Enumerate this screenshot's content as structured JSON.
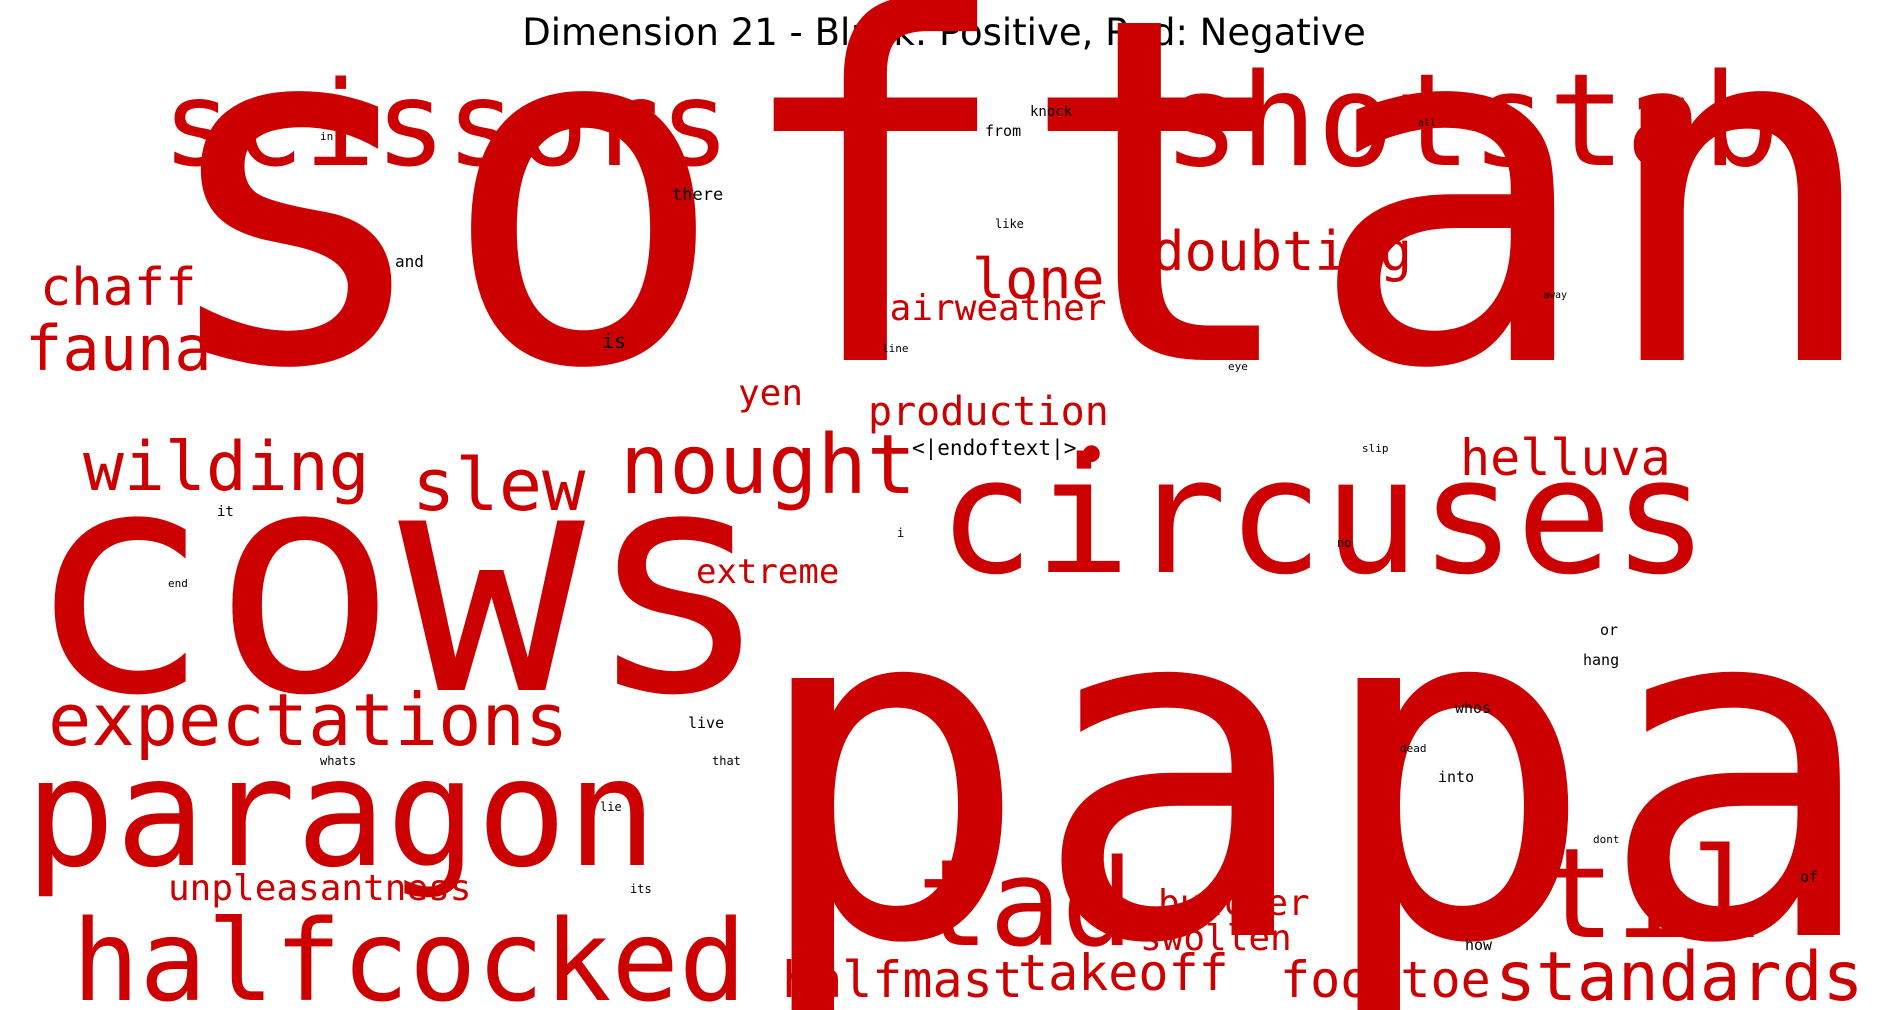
{
  "chart_data": {
    "type": "wordcloud",
    "title": "Dimension 21 - Black: Positive, Red: Negative",
    "colors": {
      "positive": "#000000",
      "negative": "#cc0000"
    },
    "words": [
      {
        "text": "softan",
        "sign": "negative",
        "weight": 100
      },
      {
        "text": "papa",
        "sign": "negative",
        "weight": 95
      },
      {
        "text": "cows",
        "sign": "negative",
        "weight": 72
      },
      {
        "text": "paragon",
        "sign": "negative",
        "weight": 42
      },
      {
        "text": "circuses",
        "sign": "negative",
        "weight": 38
      },
      {
        "text": "shotstab",
        "sign": "negative",
        "weight": 32
      },
      {
        "text": "scissors",
        "sign": "negative",
        "weight": 31
      },
      {
        "text": "halfcocked",
        "sign": "negative",
        "weight": 30
      },
      {
        "text": "tad",
        "sign": "negative",
        "weight": 30
      },
      {
        "text": "til",
        "sign": "negative",
        "weight": 30
      },
      {
        "text": "nought",
        "sign": "negative",
        "weight": 21
      },
      {
        "text": "expectations",
        "sign": "negative",
        "weight": 19
      },
      {
        "text": "slew",
        "sign": "negative",
        "weight": 19
      },
      {
        "text": "wilding",
        "sign": "negative",
        "weight": 18
      },
      {
        "text": "standards",
        "sign": "negative",
        "weight": 18
      },
      {
        "text": "fauna",
        "sign": "negative",
        "weight": 17
      },
      {
        "text": "lone",
        "sign": "negative",
        "weight": 15
      },
      {
        "text": "doubting",
        "sign": "negative",
        "weight": 14
      },
      {
        "text": "helluva",
        "sign": "negative",
        "weight": 14
      },
      {
        "text": "foottoe",
        "sign": "negative",
        "weight": 14
      },
      {
        "text": "halfmast",
        "sign": "negative",
        "weight": 14
      },
      {
        "text": "takeoff",
        "sign": "negative",
        "weight": 14
      },
      {
        "text": "chaff",
        "sign": "negative",
        "weight": 14
      },
      {
        "text": "production",
        "sign": "negative",
        "weight": 12
      },
      {
        "text": "fairweather",
        "sign": "negative",
        "weight": 10
      },
      {
        "text": "butcher",
        "sign": "negative",
        "weight": 10
      },
      {
        "text": "yen",
        "sign": "negative",
        "weight": 10
      },
      {
        "text": "unpleasantness",
        "sign": "negative",
        "weight": 10
      },
      {
        "text": "swollen",
        "sign": "negative",
        "weight": 9
      },
      {
        "text": "extreme",
        "sign": "negative",
        "weight": 9
      },
      {
        "text": "●",
        "sign": "negative",
        "weight": 9
      },
      {
        "text": "<|endoftext|>",
        "sign": "positive",
        "weight": 6
      },
      {
        "text": "is",
        "sign": "positive",
        "weight": 6
      },
      {
        "text": "there",
        "sign": "positive",
        "weight": 5
      },
      {
        "text": "and",
        "sign": "positive",
        "weight": 5
      },
      {
        "text": "live",
        "sign": "positive",
        "weight": 4.5
      },
      {
        "text": "whos",
        "sign": "positive",
        "weight": 4.5
      },
      {
        "text": "into",
        "sign": "positive",
        "weight": 4.5
      },
      {
        "text": "hang",
        "sign": "positive",
        "weight": 4.5
      },
      {
        "text": "or",
        "sign": "positive",
        "weight": 4.5
      },
      {
        "text": "of",
        "sign": "positive",
        "weight": 4.5
      },
      {
        "text": "how",
        "sign": "positive",
        "weight": 4.5
      },
      {
        "text": "from",
        "sign": "positive",
        "weight": 4.5
      },
      {
        "text": "knock",
        "sign": "positive",
        "weight": 4
      },
      {
        "text": "it",
        "sign": "positive",
        "weight": 4
      },
      {
        "text": "like",
        "sign": "positive",
        "weight": 3.5
      },
      {
        "text": "whats",
        "sign": "positive",
        "weight": 3.5
      },
      {
        "text": "that",
        "sign": "positive",
        "weight": 3.5
      },
      {
        "text": "its",
        "sign": "positive",
        "weight": 3.5
      },
      {
        "text": "lie",
        "sign": "positive",
        "weight": 3.5
      },
      {
        "text": "i",
        "sign": "positive",
        "weight": 3.5
      },
      {
        "text": "no",
        "sign": "positive",
        "weight": 3.5
      },
      {
        "text": "line",
        "sign": "positive",
        "weight": 3
      },
      {
        "text": "eye",
        "sign": "positive",
        "weight": 3
      },
      {
        "text": "slip",
        "sign": "positive",
        "weight": 3
      },
      {
        "text": "dead",
        "sign": "positive",
        "weight": 3
      },
      {
        "text": "dont",
        "sign": "positive",
        "weight": 3
      },
      {
        "text": "end",
        "sign": "positive",
        "weight": 3
      },
      {
        "text": "in",
        "sign": "positive",
        "weight": 3
      },
      {
        "text": "all",
        "sign": "positive",
        "weight": 2.5
      },
      {
        "text": "away",
        "sign": "positive",
        "weight": 2.5
      }
    ]
  }
}
